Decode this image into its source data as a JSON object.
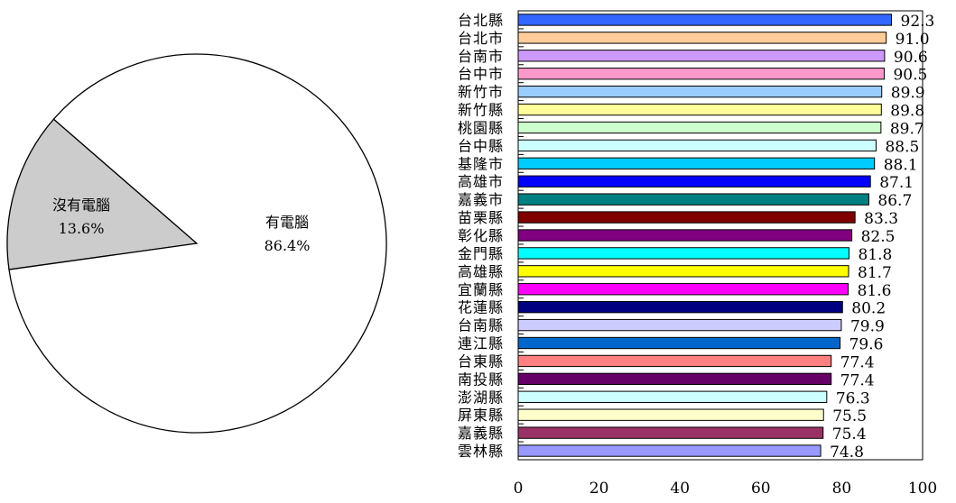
{
  "chart_data": [
    {
      "type": "pie",
      "slices": [
        {
          "label": "沒有電腦",
          "value": 13.6,
          "value_text": "13.6%",
          "color": "#cccccc"
        },
        {
          "label": "有電腦",
          "value": 86.4,
          "value_text": "86.4%",
          "color": "#ffffff"
        }
      ]
    },
    {
      "type": "bar",
      "orientation": "horizontal",
      "xlim": [
        0,
        100
      ],
      "xticks": [
        "0",
        "20",
        "40",
        "60",
        "80",
        "100"
      ],
      "categories": [
        "台北縣",
        "台北市",
        "台南市",
        "台中市",
        "新竹市",
        "新竹縣",
        "桃園縣",
        "台中縣",
        "基隆市",
        "高雄市",
        "嘉義市",
        "苗栗縣",
        "彰化縣",
        "金門縣",
        "高雄縣",
        "宜蘭縣",
        "花蓮縣",
        "台南縣",
        "連江縣",
        "台東縣",
        "南投縣",
        "澎湖縣",
        "屏東縣",
        "嘉義縣",
        "雲林縣"
      ],
      "values": [
        92.3,
        91.0,
        90.6,
        90.5,
        89.9,
        89.8,
        89.7,
        88.5,
        88.1,
        87.1,
        86.7,
        83.3,
        82.5,
        81.8,
        81.7,
        81.6,
        80.2,
        79.9,
        79.6,
        77.4,
        77.4,
        76.3,
        75.5,
        75.4,
        74.8
      ],
      "value_labels": [
        "92.3",
        "91.0",
        "90.6",
        "90.5",
        "89.9",
        "89.8",
        "89.7",
        "88.5",
        "88.1",
        "87.1",
        "86.7",
        "83.3",
        "82.5",
        "81.8",
        "81.7",
        "81.6",
        "80.2",
        "79.9",
        "79.6",
        "77.4",
        "77.4",
        "76.3",
        "75.5",
        "75.4",
        "74.8"
      ],
      "colors": [
        "#3366ff",
        "#ffcc99",
        "#cc99ff",
        "#ff99cc",
        "#99ccff",
        "#ffff99",
        "#ccffcc",
        "#ccffff",
        "#00ccff",
        "#0000ff",
        "#008080",
        "#800000",
        "#800080",
        "#00ffff",
        "#ffff00",
        "#ff00ff",
        "#000080",
        "#ccccff",
        "#0066cc",
        "#ff8080",
        "#660066",
        "#ccffff",
        "#ffffcc",
        "#993366",
        "#9999ff"
      ],
      "grid": false,
      "legend": "none"
    }
  ]
}
